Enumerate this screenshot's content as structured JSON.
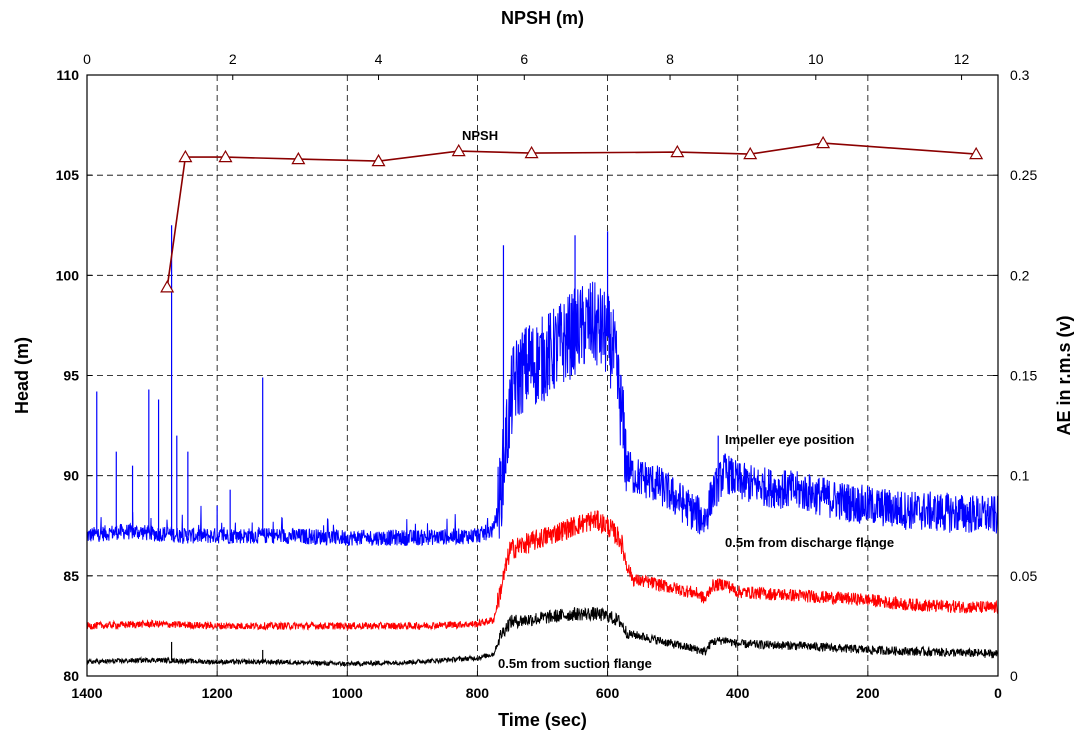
{
  "chart_data": {
    "type": "line",
    "x": {
      "label": "Time (sec)",
      "range": [
        1400,
        0
      ],
      "reversed": true,
      "ticks": [
        1400,
        1200,
        1000,
        800,
        600,
        400,
        200,
        0
      ]
    },
    "x2": {
      "label": "NPSH (m)",
      "range": [
        0,
        12.5
      ],
      "ticks": [
        0,
        2,
        4,
        6,
        8,
        10,
        12
      ]
    },
    "y_left": {
      "label": "Head (m)",
      "range": [
        80,
        110
      ],
      "ticks": [
        80,
        85,
        90,
        95,
        100,
        105,
        110
      ]
    },
    "y_right": {
      "label": "AE in r.m.s (v)",
      "range": [
        0,
        0.3
      ],
      "ticks": [
        "0",
        "0.05",
        "0.1",
        "0.15",
        "0.2",
        "0.25",
        "0.3"
      ]
    },
    "grid": true,
    "series": [
      {
        "name": "NPSH",
        "color": "#8b0000",
        "marker": "open-triangle",
        "axis": "npsh-head",
        "x": [
          1.1,
          1.35,
          1.9,
          2.9,
          4.0,
          5.1,
          6.1,
          8.1,
          9.1,
          10.1,
          12.2
        ],
        "y": [
          99.4,
          105.9,
          105.9,
          105.8,
          105.7,
          106.2,
          106.1,
          106.15,
          106.05,
          106.6,
          106.05
        ]
      },
      {
        "name": "Impeller eye position",
        "color": "#0000ff",
        "axis": "time-ae",
        "x": [
          1400,
          1380,
          1350,
          1320,
          1300,
          1275,
          1250,
          1200,
          1150,
          1100,
          1000,
          900,
          800,
          775,
          765,
          755,
          745,
          730,
          700,
          680,
          650,
          625,
          600,
          590,
          580,
          570,
          560,
          540,
          520,
          500,
          480,
          460,
          450,
          440,
          420,
          400,
          350,
          300,
          250,
          200,
          150,
          100,
          50,
          0
        ],
        "y": [
          0.07,
          0.071,
          0.072,
          0.072,
          0.071,
          0.071,
          0.07,
          0.07,
          0.07,
          0.07,
          0.069,
          0.069,
          0.07,
          0.073,
          0.09,
          0.12,
          0.145,
          0.153,
          0.158,
          0.163,
          0.172,
          0.176,
          0.17,
          0.16,
          0.135,
          0.105,
          0.1,
          0.098,
          0.095,
          0.09,
          0.085,
          0.08,
          0.078,
          0.09,
          0.102,
          0.097,
          0.094,
          0.092,
          0.088,
          0.085,
          0.083,
          0.082,
          0.081,
          0.08
        ],
        "spikes": [
          {
            "x": 1385,
            "y": 0.142
          },
          {
            "x": 1355,
            "y": 0.112
          },
          {
            "x": 1330,
            "y": 0.105
          },
          {
            "x": 1305,
            "y": 0.143
          },
          {
            "x": 1290,
            "y": 0.138
          },
          {
            "x": 1270,
            "y": 0.225
          },
          {
            "x": 1262,
            "y": 0.12
          },
          {
            "x": 1245,
            "y": 0.112
          },
          {
            "x": 1200,
            "y": 0.085
          },
          {
            "x": 1180,
            "y": 0.093
          },
          {
            "x": 1130,
            "y": 0.149
          },
          {
            "x": 760,
            "y": 0.215
          },
          {
            "x": 720,
            "y": 0.175
          },
          {
            "x": 650,
            "y": 0.22
          },
          {
            "x": 600,
            "y": 0.222
          },
          {
            "x": 430,
            "y": 0.12
          }
        ]
      },
      {
        "name": "0.5m from discharge flange",
        "color": "#ff0000",
        "axis": "time-ae",
        "x": [
          1400,
          1300,
          1200,
          1100,
          1000,
          900,
          800,
          775,
          765,
          750,
          700,
          650,
          620,
          600,
          580,
          570,
          560,
          540,
          500,
          460,
          450,
          440,
          420,
          400,
          300,
          200,
          150,
          100,
          0
        ],
        "y": [
          0.025,
          0.026,
          0.025,
          0.025,
          0.025,
          0.025,
          0.026,
          0.028,
          0.042,
          0.063,
          0.069,
          0.075,
          0.078,
          0.075,
          0.068,
          0.055,
          0.048,
          0.047,
          0.044,
          0.041,
          0.038,
          0.045,
          0.046,
          0.042,
          0.04,
          0.038,
          0.036,
          0.035,
          0.034
        ]
      },
      {
        "name": "0.5m from suction flange",
        "color": "#000000",
        "axis": "time-ae",
        "x": [
          1400,
          1300,
          1200,
          1100,
          1000,
          900,
          800,
          775,
          765,
          750,
          700,
          650,
          620,
          600,
          580,
          570,
          550,
          500,
          460,
          450,
          440,
          420,
          400,
          300,
          200,
          100,
          0
        ],
        "y": [
          0.007,
          0.008,
          0.007,
          0.007,
          0.006,
          0.007,
          0.009,
          0.011,
          0.02,
          0.027,
          0.029,
          0.031,
          0.031,
          0.03,
          0.027,
          0.021,
          0.02,
          0.016,
          0.013,
          0.012,
          0.017,
          0.018,
          0.016,
          0.015,
          0.013,
          0.012,
          0.011
        ],
        "spikes": [
          {
            "x": 1270,
            "y": 0.017
          },
          {
            "x": 1130,
            "y": 0.013
          }
        ]
      }
    ]
  }
}
